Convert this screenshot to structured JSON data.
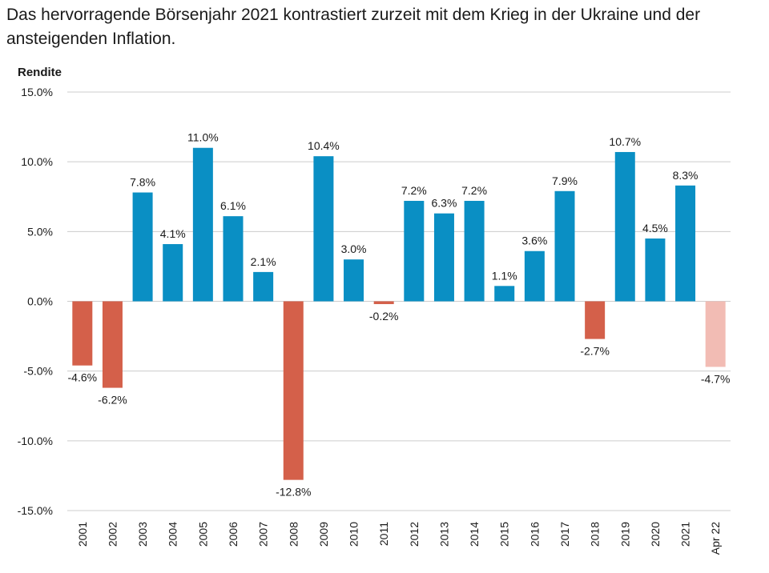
{
  "headline": "Das hervorragende Börsenjahr 2021 kontrastiert zurzeit mit dem Krieg in der Ukraine und der ansteigenden Inflation.",
  "chart_data": {
    "type": "bar",
    "ylabel": "Rendite",
    "xlabel": "",
    "ylim": [
      -15,
      15
    ],
    "yticks": [
      15,
      10,
      5,
      0,
      -5,
      -10,
      -15
    ],
    "ytick_labels": [
      "15.0%",
      "10.0%",
      "5.0%",
      "0.0%",
      "-5.0%",
      "-10.0%",
      "-15.0%"
    ],
    "grid": true,
    "categories": [
      "2001",
      "2002",
      "2003",
      "2004",
      "2005",
      "2006",
      "2007",
      "2008",
      "2009",
      "2010",
      "2011",
      "2012",
      "2013",
      "2014",
      "2015",
      "2016",
      "2017",
      "2018",
      "2019",
      "2020",
      "2021",
      "Apr 22"
    ],
    "values": [
      -4.6,
      -6.2,
      7.8,
      4.1,
      11.0,
      6.1,
      2.1,
      -12.8,
      10.4,
      3.0,
      -0.2,
      7.2,
      6.3,
      7.2,
      1.1,
      3.6,
      7.9,
      -2.7,
      10.7,
      4.5,
      8.3,
      -4.7
    ],
    "value_labels": [
      "-4.6%",
      "-6.2%",
      "7.8%",
      "4.1%",
      "11.0%",
      "6.1%",
      "2.1%",
      "-12.8%",
      "10.4%",
      "3.0%",
      "-0.2%",
      "7.2%",
      "6.3%",
      "7.2%",
      "1.1%",
      "3.6%",
      "7.9%",
      "-2.7%",
      "10.7%",
      "4.5%",
      "8.3%",
      "-4.7%"
    ],
    "colors": {
      "positive": "#0a8fc4",
      "negative": "#d4604a",
      "partial_year": "#f2bcb4",
      "grid": "#cccccc",
      "text": "#1a1a1a"
    }
  }
}
